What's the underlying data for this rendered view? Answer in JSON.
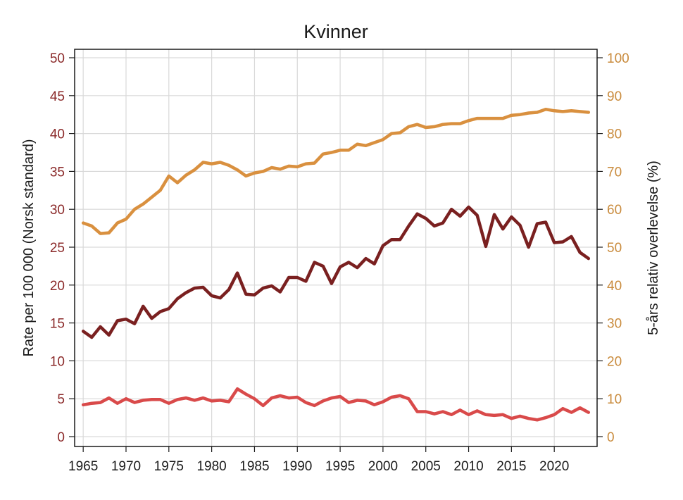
{
  "chart_data": {
    "type": "line",
    "title": "Kvinner",
    "ylabel": "Rate per 100 000 (Norsk standard)",
    "y2label": "5-års relativ overlevelse (%)",
    "xlabel": "",
    "xlim": [
      1964,
      2025
    ],
    "ylim": [
      0,
      50
    ],
    "y2lim": [
      0,
      100
    ],
    "xticks": [
      1965,
      1970,
      1975,
      1980,
      1985,
      1990,
      1995,
      2000,
      2005,
      2010,
      2015,
      2020
    ],
    "yticks": [
      0,
      5,
      10,
      15,
      20,
      25,
      30,
      35,
      40,
      45,
      50
    ],
    "y2ticks": [
      0,
      10,
      20,
      30,
      40,
      50,
      60,
      70,
      80,
      90,
      100
    ],
    "grid": true,
    "x": [
      1965,
      1966,
      1967,
      1968,
      1969,
      1970,
      1971,
      1972,
      1973,
      1974,
      1975,
      1976,
      1977,
      1978,
      1979,
      1980,
      1981,
      1982,
      1983,
      1984,
      1985,
      1986,
      1987,
      1988,
      1989,
      1990,
      1991,
      1992,
      1993,
      1994,
      1995,
      1996,
      1997,
      1998,
      1999,
      2000,
      2001,
      2002,
      2003,
      2004,
      2005,
      2006,
      2007,
      2008,
      2009,
      2010,
      2011,
      2012,
      2013,
      2014,
      2015,
      2016,
      2017,
      2018,
      2019,
      2020,
      2021,
      2022,
      2023,
      2024
    ],
    "series": [
      {
        "color": "#d9903f",
        "axis": "right",
        "values": [
          56.4,
          55.6,
          53.6,
          53.8,
          56.4,
          57.4,
          60.0,
          61.4,
          63.2,
          65.0,
          68.8,
          67.0,
          69.0,
          70.4,
          72.4,
          72.0,
          72.4,
          71.6,
          70.4,
          68.8,
          69.6,
          70.0,
          71.0,
          70.6,
          71.4,
          71.2,
          72.0,
          72.2,
          74.6,
          75.0,
          75.6,
          75.6,
          77.2,
          76.8,
          77.6,
          78.4,
          80.0,
          80.2,
          81.8,
          82.4,
          81.6,
          81.8,
          82.4,
          82.6,
          82.6,
          83.4,
          84.0,
          84.0,
          84.0,
          84.0,
          84.8,
          85.0,
          85.4,
          85.6,
          86.4,
          86.0,
          85.8,
          86.0,
          85.8,
          85.6
        ]
      },
      {
        "color": "#7a2020",
        "axis": "left",
        "values": [
          13.9,
          13.1,
          14.5,
          13.4,
          15.3,
          15.5,
          14.9,
          17.2,
          15.6,
          16.5,
          16.9,
          18.2,
          19.0,
          19.6,
          19.7,
          18.6,
          18.3,
          19.4,
          21.6,
          18.8,
          18.7,
          19.6,
          19.9,
          19.1,
          21.0,
          21.0,
          20.5,
          23.0,
          22.5,
          20.2,
          22.4,
          23.0,
          22.3,
          23.5,
          22.8,
          25.2,
          26.0,
          26.0,
          27.8,
          29.4,
          28.8,
          27.8,
          28.2,
          30.0,
          29.1,
          30.3,
          29.2,
          25.1,
          29.3,
          27.4,
          29.0,
          27.9,
          25.0,
          28.1,
          28.3,
          25.6,
          25.7,
          26.4,
          24.3,
          23.5
        ]
      },
      {
        "color": "#d94a4a",
        "axis": "left",
        "values": [
          4.2,
          4.4,
          4.5,
          5.1,
          4.4,
          5.0,
          4.5,
          4.8,
          4.9,
          4.9,
          4.4,
          4.9,
          5.1,
          4.8,
          5.1,
          4.7,
          4.8,
          4.6,
          6.3,
          5.6,
          5.0,
          4.1,
          5.1,
          5.4,
          5.1,
          5.2,
          4.5,
          4.1,
          4.7,
          5.1,
          5.3,
          4.5,
          4.8,
          4.7,
          4.2,
          4.6,
          5.2,
          5.4,
          5.0,
          3.3,
          3.3,
          3.0,
          3.3,
          2.9,
          3.5,
          2.9,
          3.4,
          2.9,
          2.8,
          2.9,
          2.4,
          2.7,
          2.4,
          2.2,
          2.5,
          2.9,
          3.7,
          3.2,
          3.8,
          3.2
        ]
      }
    ]
  }
}
